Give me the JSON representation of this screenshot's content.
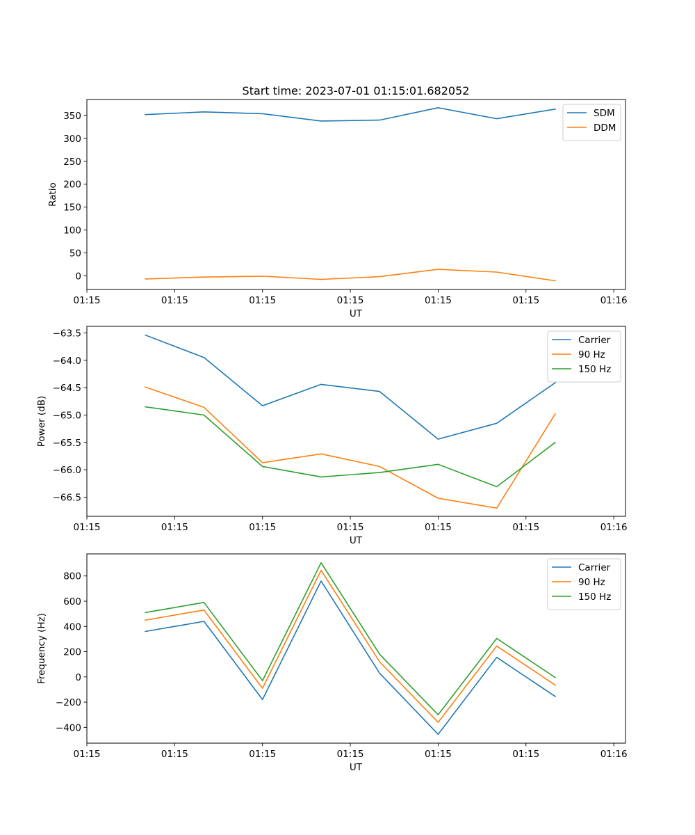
{
  "figure": {
    "title": "Start time: 2023-07-01 01:15:01.682052"
  },
  "chart_data": [
    {
      "type": "line",
      "title": "Start time: 2023-07-01 01:15:01.682052",
      "xlabel": "UT",
      "ylabel": "Ratio",
      "x_tick_labels": [
        "01:15",
        "01:15",
        "01:15",
        "01:15",
        "01:15",
        "01:15",
        "01:16"
      ],
      "x": [
        1,
        2,
        3,
        4,
        5,
        6,
        7,
        8
      ],
      "xlim": [
        0,
        9.2
      ],
      "x_ticks": [
        0,
        1.5,
        3,
        4.5,
        6,
        7.5,
        9
      ],
      "ylim": [
        -30,
        385
      ],
      "y_ticks": [
        0,
        50,
        100,
        150,
        200,
        250,
        300,
        350
      ],
      "y_tick_labels": [
        "0",
        "50",
        "100",
        "150",
        "200",
        "250",
        "300",
        "350"
      ],
      "legend_position": "top-right",
      "series": [
        {
          "name": "SDM",
          "color": "#1f77b4",
          "values": [
            352,
            358,
            354,
            338,
            340,
            367,
            343,
            364
          ]
        },
        {
          "name": "DDM",
          "color": "#ff7f0e",
          "values": [
            -7,
            -3,
            -1,
            -8,
            -2,
            14,
            8,
            -11
          ]
        }
      ]
    },
    {
      "type": "line",
      "xlabel": "UT",
      "ylabel": "Power (dB)",
      "x_tick_labels": [
        "01:15",
        "01:15",
        "01:15",
        "01:15",
        "01:15",
        "01:15",
        "01:16"
      ],
      "x": [
        1,
        2,
        3,
        4,
        5,
        6,
        7,
        8
      ],
      "xlim": [
        0,
        9.2
      ],
      "x_ticks": [
        0,
        1.5,
        3,
        4.5,
        6,
        7.5,
        9
      ],
      "ylim": [
        -66.85,
        -63.38
      ],
      "y_ticks": [
        -66.5,
        -66.0,
        -65.5,
        -65.0,
        -64.5,
        -64.0,
        -63.5
      ],
      "y_tick_labels": [
        "−66.5",
        "−66.0",
        "−65.5",
        "−65.0",
        "−64.5",
        "−64.0",
        "−63.5"
      ],
      "legend_position": "top-right",
      "series": [
        {
          "name": "Carrier",
          "color": "#1f77b4",
          "values": [
            -63.54,
            -63.95,
            -64.83,
            -64.44,
            -64.57,
            -65.44,
            -65.15,
            -64.41
          ]
        },
        {
          "name": "90 Hz",
          "color": "#ff7f0e",
          "values": [
            -64.49,
            -64.86,
            -65.87,
            -65.71,
            -65.94,
            -66.52,
            -66.7,
            -64.98
          ]
        },
        {
          "name": "150 Hz",
          "color": "#2ca02c",
          "values": [
            -64.85,
            -65.0,
            -65.94,
            -66.13,
            -66.05,
            -65.9,
            -66.31,
            -65.5
          ]
        }
      ]
    },
    {
      "type": "line",
      "xlabel": "UT",
      "ylabel": "Frequency (Hz)",
      "x_tick_labels": [
        "01:15",
        "01:15",
        "01:15",
        "01:15",
        "01:15",
        "01:15",
        "01:16"
      ],
      "x": [
        1,
        2,
        3,
        4,
        5,
        6,
        7,
        8
      ],
      "xlim": [
        0,
        9.2
      ],
      "x_ticks": [
        0,
        1.5,
        3,
        4.5,
        6,
        7.5,
        9
      ],
      "ylim": [
        -525,
        975
      ],
      "y_ticks": [
        -400,
        -200,
        0,
        200,
        400,
        600,
        800
      ],
      "y_tick_labels": [
        "−400",
        "−200",
        "0",
        "200",
        "400",
        "600",
        "800"
      ],
      "legend_position": "top-right",
      "series": [
        {
          "name": "Carrier",
          "color": "#1f77b4",
          "values": [
            360,
            440,
            -180,
            760,
            30,
            -455,
            155,
            -155
          ]
        },
        {
          "name": "90 Hz",
          "color": "#ff7f0e",
          "values": [
            450,
            530,
            -90,
            845,
            120,
            -360,
            245,
            -65
          ]
        },
        {
          "name": "150 Hz",
          "color": "#2ca02c",
          "values": [
            510,
            590,
            -30,
            905,
            180,
            -300,
            305,
            -5
          ]
        }
      ]
    }
  ]
}
